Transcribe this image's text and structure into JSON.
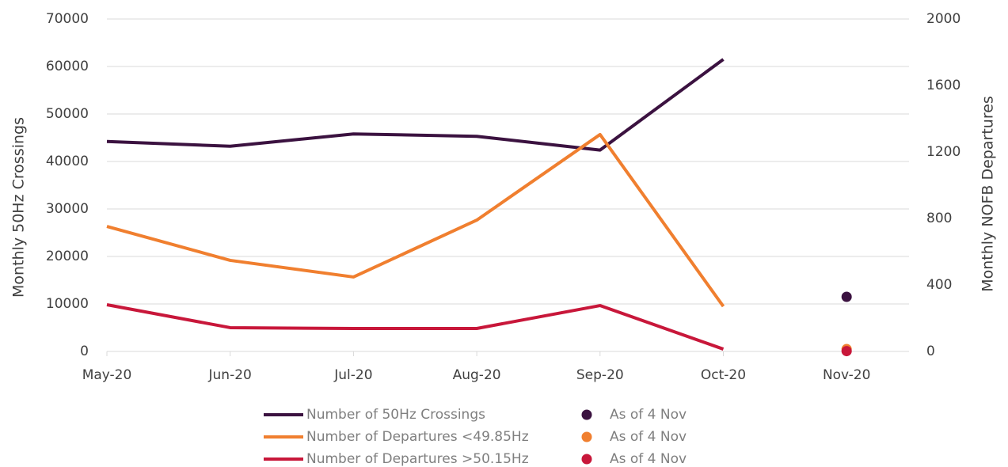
{
  "chart_data": {
    "type": "line",
    "categories": [
      "May-20",
      "Jun-20",
      "Jul-20",
      "Aug-20",
      "Sep-20",
      "Oct-20",
      "Nov-20"
    ],
    "ylabel": "Monthly 50Hz Crossings",
    "y2label": "Monthly NOFB Departures",
    "ylim": [
      0,
      70000
    ],
    "yticks": [
      0,
      10000,
      20000,
      30000,
      40000,
      50000,
      60000,
      70000
    ],
    "y2lim": [
      0,
      2000
    ],
    "y2ticks": [
      0,
      400,
      800,
      1200,
      1600,
      2000
    ],
    "grid": true,
    "series": [
      {
        "name": "Number of 50Hz Crossings",
        "color": "#3b1240",
        "mode": "line",
        "values": [
          44200,
          43200,
          45800,
          45300,
          42400,
          61500,
          null
        ]
      },
      {
        "name": "Number of Departures <49.85Hz",
        "color": "#f07f2f",
        "mode": "line",
        "axis": "y2",
        "values": [
          752,
          548,
          448,
          790,
          1305,
          271,
          null
        ]
      },
      {
        "name": "Number of Departures >50.15Hz",
        "color": "#c8173a",
        "mode": "line",
        "axis": "y2",
        "values": [
          281,
          143,
          138,
          138,
          276,
          14,
          null
        ]
      },
      {
        "name": "As of 4 Nov",
        "color": "#3b1240",
        "mode": "marker",
        "values": [
          null,
          null,
          null,
          null,
          null,
          null,
          11500
        ]
      },
      {
        "name": "As of 4 Nov",
        "color": "#f07f2f",
        "mode": "marker",
        "axis": "y2",
        "values": [
          null,
          null,
          null,
          null,
          null,
          null,
          14
        ]
      },
      {
        "name": "As of 4 Nov",
        "color": "#c8173a",
        "mode": "marker",
        "axis": "y2",
        "values": [
          null,
          null,
          null,
          null,
          null,
          null,
          2
        ]
      }
    ]
  }
}
